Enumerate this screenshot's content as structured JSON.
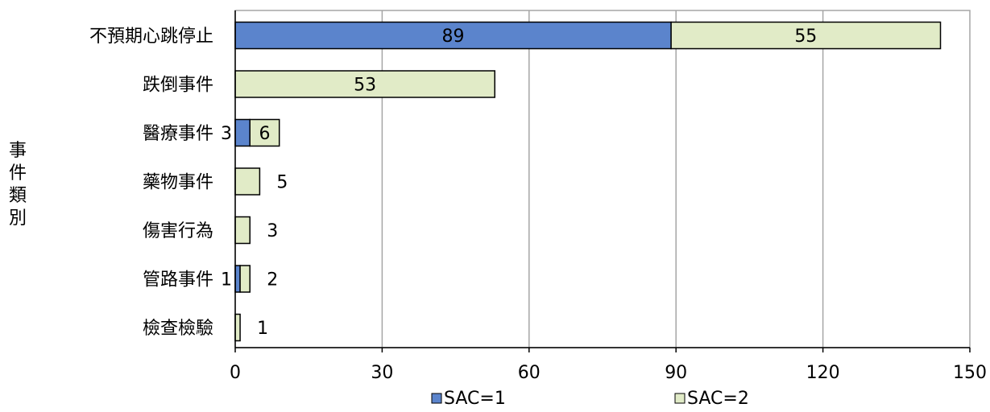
{
  "chart_data": {
    "type": "bar",
    "orientation": "horizontal",
    "stacked": true,
    "ylabel": "事件類別",
    "xlabel": "",
    "xlim": [
      0,
      150
    ],
    "xticks": [
      0,
      30,
      60,
      90,
      120,
      150
    ],
    "grid": "vertical",
    "legend_position": "bottom",
    "categories": [
      "不預期心跳停止",
      "跌倒事件",
      "醫療事件",
      "藥物事件",
      "傷害行為",
      "管路事件",
      "檢查檢驗"
    ],
    "series": [
      {
        "name": "SAC=1",
        "color": "#5b84cc",
        "values": [
          89,
          0,
          3,
          0,
          0,
          1,
          0
        ],
        "labels": [
          "89",
          "",
          "3",
          "",
          "",
          "1",
          ""
        ]
      },
      {
        "name": "SAC=2",
        "color": "#e1ebc7",
        "values": [
          55,
          53,
          6,
          5,
          3,
          2,
          1
        ],
        "labels": [
          "55",
          "53",
          "6",
          "5",
          "3",
          "2",
          "1"
        ]
      }
    ]
  }
}
